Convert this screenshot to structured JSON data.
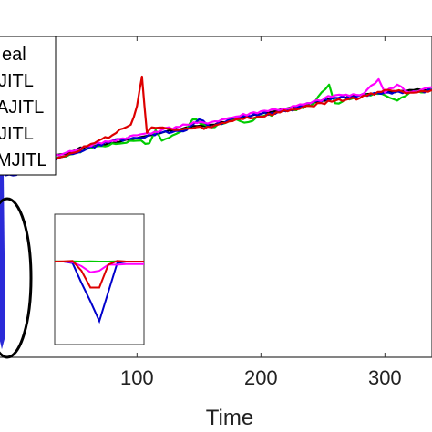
{
  "chart_data": {
    "type": "line",
    "title": "",
    "xlabel": "Time",
    "ylabel": "",
    "xlim": [
      -12,
      338
    ],
    "ylim": [
      -0.78,
      0.42
    ],
    "xticks": [
      100,
      200,
      300
    ],
    "grid": false,
    "legend": {
      "placement": "top-left",
      "entries": [
        {
          "label": "eal",
          "color": "#000000"
        },
        {
          "label": "JITL",
          "color": "#00cc00"
        },
        {
          "label": "AJITL",
          "color": "#dd0000"
        },
        {
          "label": "JITL",
          "color": "#0000cc"
        },
        {
          "label": "MJITL",
          "color": "#ff00ff"
        }
      ]
    },
    "series": [
      {
        "color": "#000000",
        "x": [
          -12,
          0,
          20,
          40,
          60,
          80,
          100,
          120,
          140,
          160,
          180,
          200,
          220,
          240,
          260,
          280,
          300,
          320,
          338
        ],
        "y": [
          -0.08,
          -0.08,
          -0.04,
          -0.02,
          0.01,
          0.02,
          0.04,
          0.06,
          0.08,
          0.09,
          0.11,
          0.13,
          0.15,
          0.17,
          0.19,
          0.2,
          0.21,
          0.22,
          0.22
        ]
      },
      {
        "color": "#00cc00",
        "x": [
          -12,
          0,
          20,
          40,
          60,
          80,
          100,
          110,
          115,
          120,
          140,
          145,
          160,
          180,
          190,
          200,
          220,
          240,
          255,
          260,
          280,
          300,
          310,
          320,
          338
        ],
        "y": [
          -0.09,
          -0.08,
          -0.05,
          -0.03,
          0.0,
          0.02,
          0.03,
          0.02,
          0.07,
          0.03,
          0.07,
          0.11,
          0.08,
          0.11,
          0.1,
          0.12,
          0.14,
          0.16,
          0.24,
          0.17,
          0.2,
          0.2,
          0.18,
          0.21,
          0.22
        ]
      },
      {
        "color": "#dd0000",
        "x": [
          -12,
          0,
          20,
          40,
          60,
          80,
          95,
          100,
          104,
          108,
          112,
          130,
          160,
          180,
          200,
          240,
          260,
          280,
          300,
          320,
          338
        ],
        "y": [
          -0.07,
          -0.07,
          -0.05,
          -0.03,
          0.01,
          0.05,
          0.09,
          0.16,
          0.27,
          0.06,
          0.08,
          0.07,
          0.08,
          0.11,
          0.12,
          0.16,
          0.18,
          0.19,
          0.22,
          0.21,
          0.22
        ]
      },
      {
        "color": "#0000cc",
        "x": [
          -12,
          0,
          20,
          40,
          60,
          80,
          100,
          120,
          140,
          150,
          160,
          180,
          200,
          220,
          240,
          260,
          280,
          300,
          320,
          338
        ],
        "y": [
          -0.09,
          -0.1,
          -0.05,
          -0.03,
          0.0,
          0.03,
          0.04,
          0.06,
          0.07,
          0.11,
          0.08,
          0.12,
          0.13,
          0.14,
          0.17,
          0.19,
          0.2,
          0.21,
          0.21,
          0.22
        ]
      },
      {
        "color": "#ff00ff",
        "x": [
          -12,
          0,
          20,
          40,
          60,
          80,
          100,
          120,
          140,
          160,
          180,
          200,
          220,
          240,
          260,
          280,
          295,
          300,
          310,
          320,
          338
        ],
        "y": [
          -0.08,
          -0.07,
          -0.04,
          -0.02,
          0.01,
          0.03,
          0.05,
          0.07,
          0.09,
          0.1,
          0.12,
          0.14,
          0.15,
          0.17,
          0.2,
          0.2,
          0.26,
          0.21,
          0.24,
          0.21,
          0.23
        ]
      }
    ],
    "inset": {
      "series": [
        {
          "color": "#000000",
          "x": [
            0,
            1,
            2,
            3,
            4,
            5,
            6,
            7,
            8,
            9,
            10
          ],
          "y": [
            0,
            0,
            0,
            0,
            0,
            0,
            0,
            0,
            0,
            0,
            0
          ]
        },
        {
          "color": "#00cc00",
          "x": [
            0,
            1,
            2,
            3,
            4,
            5,
            6,
            7,
            8,
            9,
            10
          ],
          "y": [
            0.01,
            0.0,
            0.01,
            0.0,
            0.01,
            0.0,
            0.0,
            0.01,
            0.0,
            0.0,
            0.0
          ]
        },
        {
          "color": "#dd0000",
          "x": [
            0,
            1,
            2,
            3,
            4,
            5,
            6,
            7,
            8,
            9,
            10
          ],
          "y": [
            0.0,
            0.01,
            0.02,
            -0.3,
            -0.85,
            -0.85,
            -0.1,
            0.02,
            0.0,
            0.0,
            0.0
          ]
        },
        {
          "color": "#0000cc",
          "x": [
            0,
            1,
            2,
            3,
            4,
            5,
            6,
            7,
            8,
            9,
            10
          ],
          "y": [
            0.0,
            0.0,
            -0.05,
            -0.7,
            -1.3,
            -1.95,
            -1.0,
            -0.05,
            0.0,
            0.0,
            0.0
          ]
        },
        {
          "color": "#ff00ff",
          "x": [
            0,
            1,
            2,
            3,
            4,
            5,
            6,
            7,
            8,
            9,
            10
          ],
          "y": [
            0.0,
            0.0,
            -0.02,
            -0.15,
            -0.35,
            -0.3,
            -0.1,
            -0.1,
            -0.08,
            -0.08,
            -0.08
          ]
        }
      ]
    }
  }
}
